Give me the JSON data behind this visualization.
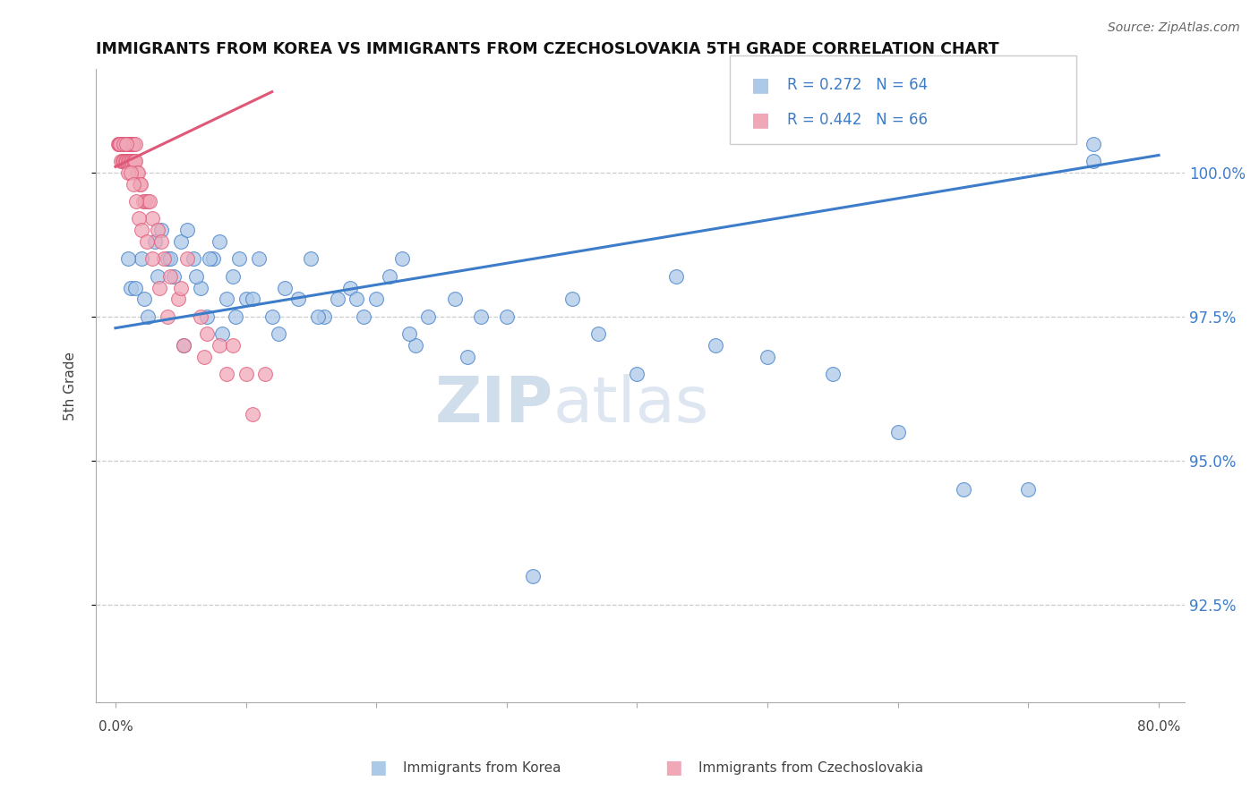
{
  "title": "IMMIGRANTS FROM KOREA VS IMMIGRANTS FROM CZECHOSLOVAKIA 5TH GRADE CORRELATION CHART",
  "source": "Source: ZipAtlas.com",
  "ylabel": "5th Grade",
  "color_korea": "#adc9e8",
  "color_czech": "#f0a8b8",
  "color_korea_line": "#3d7cc9",
  "color_czech_line": "#e05878",
  "color_rtext": "#3d7cc9",
  "ytick_vals": [
    92.5,
    95.0,
    97.5,
    100.0
  ],
  "ytick_labels": [
    "92.5%",
    "95.0%",
    "97.5%",
    "100.0%"
  ],
  "ylim_bottom": 90.8,
  "ylim_top": 101.8,
  "xlim_left": -1.5,
  "xlim_right": 82.0,
  "korea_x": [
    1.2,
    2.0,
    2.5,
    3.0,
    3.5,
    4.0,
    4.5,
    5.0,
    5.5,
    6.0,
    6.5,
    7.0,
    7.5,
    8.0,
    8.5,
    9.0,
    9.5,
    10.0,
    11.0,
    12.0,
    13.0,
    14.0,
    15.0,
    16.0,
    17.0,
    18.0,
    19.0,
    20.0,
    21.0,
    22.0,
    23.0,
    24.0,
    26.0,
    28.0,
    30.0,
    35.0,
    37.0,
    40.0,
    43.0,
    46.0,
    50.0,
    55.0,
    60.0,
    65.0,
    70.0,
    75.0,
    1.0,
    1.5,
    2.2,
    3.2,
    4.2,
    5.2,
    6.2,
    7.2,
    8.2,
    9.2,
    10.5,
    12.5,
    15.5,
    18.5,
    22.5,
    27.0,
    32.0,
    75.0
  ],
  "korea_y": [
    98.0,
    98.5,
    97.5,
    98.8,
    99.0,
    98.5,
    98.2,
    98.8,
    99.0,
    98.5,
    98.0,
    97.5,
    98.5,
    98.8,
    97.8,
    98.2,
    98.5,
    97.8,
    98.5,
    97.5,
    98.0,
    97.8,
    98.5,
    97.5,
    97.8,
    98.0,
    97.5,
    97.8,
    98.2,
    98.5,
    97.0,
    97.5,
    97.8,
    97.5,
    97.5,
    97.8,
    97.2,
    96.5,
    98.2,
    97.0,
    96.8,
    96.5,
    95.5,
    94.5,
    94.5,
    100.2,
    98.5,
    98.0,
    97.8,
    98.2,
    98.5,
    97.0,
    98.2,
    98.5,
    97.2,
    97.5,
    97.8,
    97.2,
    97.5,
    97.8,
    97.2,
    96.8,
    93.0,
    100.5
  ],
  "czech_x": [
    0.2,
    0.3,
    0.4,
    0.5,
    0.6,
    0.7,
    0.8,
    0.9,
    1.0,
    1.1,
    1.2,
    1.3,
    1.4,
    1.5,
    0.25,
    0.35,
    0.45,
    0.55,
    0.65,
    0.75,
    0.85,
    0.95,
    1.05,
    1.15,
    1.25,
    1.35,
    1.45,
    1.55,
    1.65,
    1.75,
    1.85,
    1.95,
    2.1,
    2.3,
    2.5,
    2.8,
    3.2,
    3.7,
    4.2,
    4.8,
    5.5,
    6.5,
    8.0,
    10.0,
    2.6,
    3.5,
    5.0,
    7.0,
    9.0,
    11.5,
    0.6,
    0.8,
    1.0,
    1.2,
    1.4,
    1.6,
    1.8,
    2.0,
    2.4,
    2.8,
    3.4,
    4.0,
    5.2,
    6.8,
    8.5,
    10.5
  ],
  "czech_y": [
    100.5,
    100.5,
    100.5,
    100.5,
    100.5,
    100.5,
    100.5,
    100.5,
    100.5,
    100.5,
    100.5,
    100.5,
    100.5,
    100.5,
    100.5,
    100.5,
    100.2,
    100.2,
    100.2,
    100.2,
    100.2,
    100.2,
    100.2,
    100.2,
    100.2,
    100.2,
    100.2,
    100.2,
    100.0,
    100.0,
    99.8,
    99.8,
    99.5,
    99.5,
    99.5,
    99.2,
    99.0,
    98.5,
    98.2,
    97.8,
    98.5,
    97.5,
    97.0,
    96.5,
    99.5,
    98.8,
    98.0,
    97.2,
    97.0,
    96.5,
    100.5,
    100.5,
    100.0,
    100.0,
    99.8,
    99.5,
    99.2,
    99.0,
    98.8,
    98.5,
    98.0,
    97.5,
    97.0,
    96.8,
    96.5,
    95.8
  ],
  "korea_trendline_x": [
    0,
    80
  ],
  "korea_trendline_y": [
    97.3,
    100.3
  ],
  "czech_trendline_x": [
    0,
    12
  ],
  "czech_trendline_y": [
    100.1,
    101.4
  ],
  "watermark_zip": "ZIP",
  "watermark_atlas": "atlas",
  "legend_text1": "R = 0.272   N = 64",
  "legend_text2": "R = 0.442   N = 66",
  "legend_label1": "Immigrants from Korea",
  "legend_label2": "Immigrants from Czechoslovakia"
}
